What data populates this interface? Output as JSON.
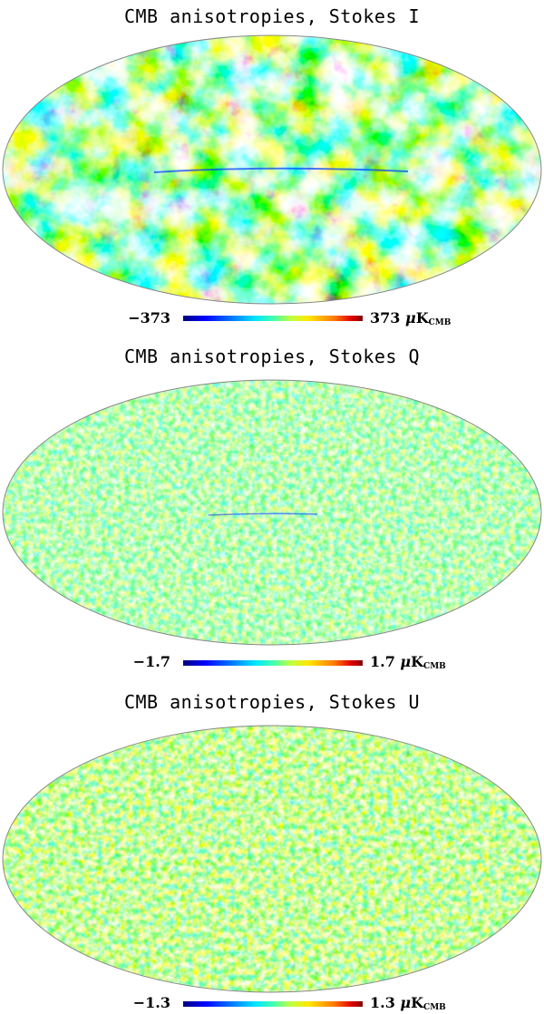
{
  "units": {
    "mu": "μ",
    "k": "K",
    "sub": "CMB"
  },
  "colors": {
    "outline": "#888888",
    "jet": [
      "#00007f",
      "#0000ff",
      "#0080ff",
      "#00e5ff",
      "#40ffb0",
      "#c0ff40",
      "#ffe600",
      "#ff7a00",
      "#e00000",
      "#7f0000"
    ]
  },
  "panels": [
    {
      "title": "CMB anisotropies, Stokes I",
      "min_label": "−373",
      "max_label": "373"
    },
    {
      "title": "CMB anisotropies, Stokes Q",
      "min_label": "−1.7",
      "max_label": "1.7"
    },
    {
      "title": "CMB anisotropies, Stokes U",
      "min_label": "−1.3",
      "max_label": "1.3"
    }
  ]
}
